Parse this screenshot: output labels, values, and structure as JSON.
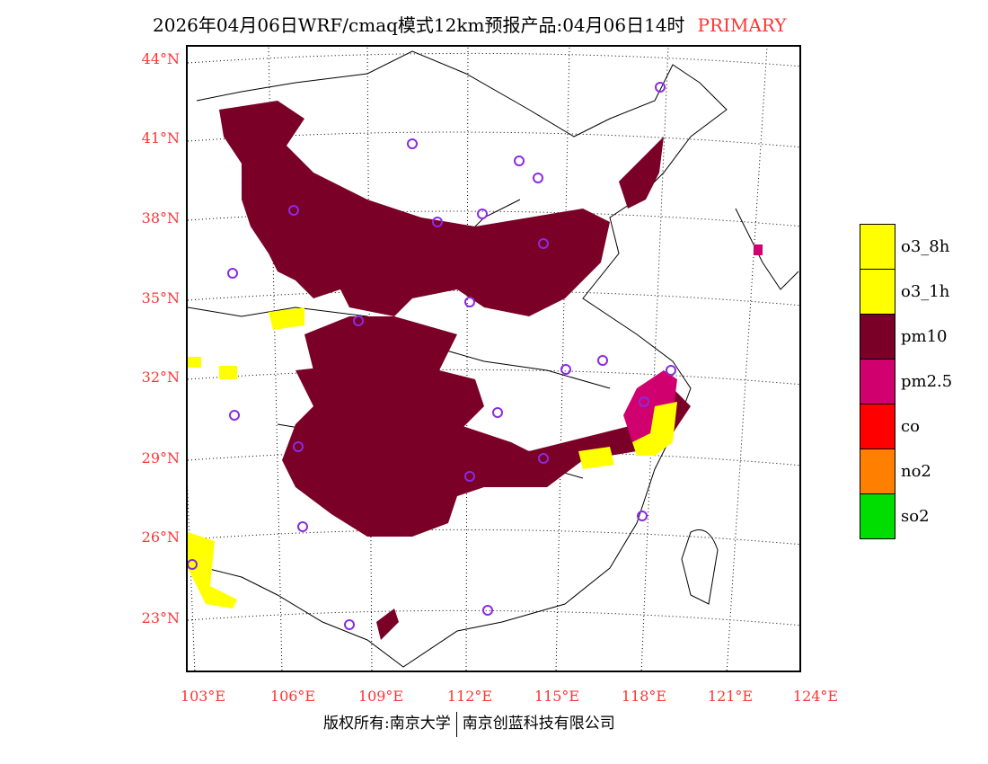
{
  "title": {
    "main": "2026年04月06日WRF/cmaq模式12km预报产品:04月06日14时",
    "tag": "PRIMARY"
  },
  "lat_labels": [
    "44°N",
    "41°N",
    "38°N",
    "35°N",
    "32°N",
    "29°N",
    "26°N",
    "23°N"
  ],
  "lon_labels": [
    "103°E",
    "106°E",
    "109°E",
    "112°E",
    "115°E",
    "118°E",
    "121°E",
    "124°E"
  ],
  "legend": [
    {
      "label": "o3_8h",
      "color": "#ffff00"
    },
    {
      "label": "o3_1h",
      "color": "#ffff00"
    },
    {
      "label": "pm10",
      "color": "#7a0028"
    },
    {
      "label": "pm2.5",
      "color": "#d0006f"
    },
    {
      "label": "co",
      "color": "#ff0000"
    },
    {
      "label": "no2",
      "color": "#ff8000"
    },
    {
      "label": "so2",
      "color": "#00dd00"
    }
  ],
  "footer": {
    "left": "版权所有:南京大学",
    "right": "南京创蓝科技有限公司"
  },
  "colors": {
    "pm10": "#7a0028",
    "pm25": "#d0006f",
    "o3": "#ffff00",
    "city": "#8a2be2",
    "label": "#ff3333"
  }
}
